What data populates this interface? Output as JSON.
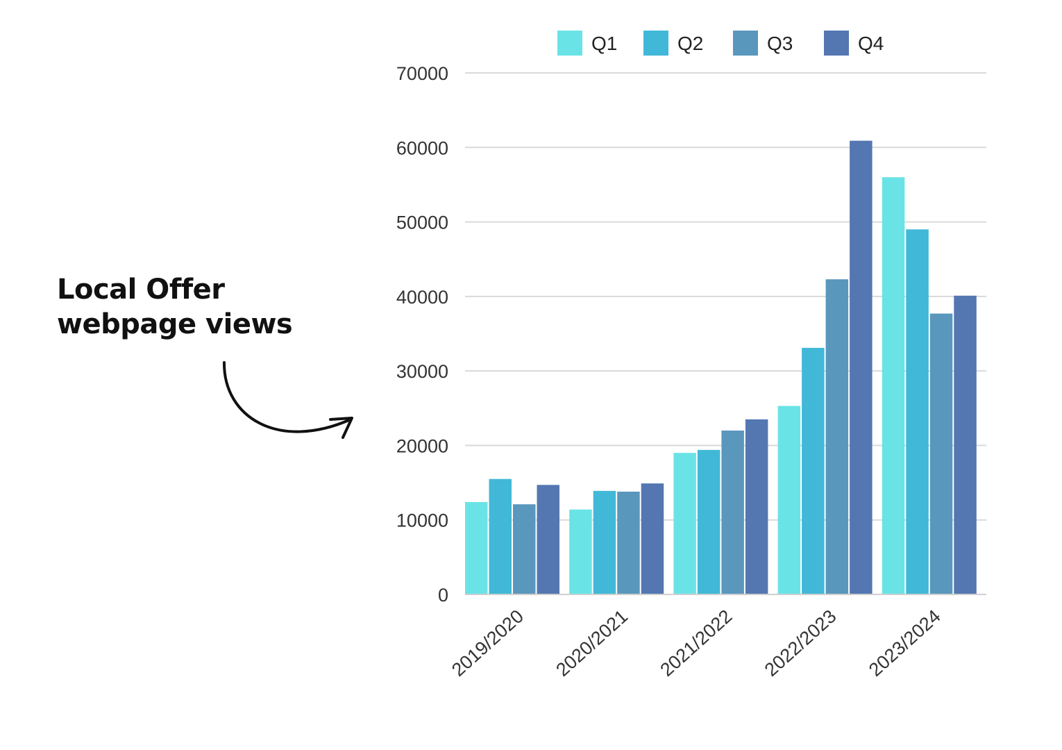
{
  "annotation": {
    "line1": "Local Offer",
    "line2": "webpage views"
  },
  "chart_data": {
    "type": "bar",
    "title": "",
    "xlabel": "",
    "ylabel": "",
    "categories": [
      "2019/2020",
      "2020/2021",
      "2021/2022",
      "2022/2023",
      "2023/2024"
    ],
    "series": [
      {
        "name": "Q1",
        "color": "#6ae3e6",
        "values": [
          12400,
          11400,
          19000,
          25300,
          56000
        ]
      },
      {
        "name": "Q2",
        "color": "#41b8d8",
        "values": [
          15500,
          13900,
          19400,
          33100,
          49000
        ]
      },
      {
        "name": "Q3",
        "color": "#5a97bd",
        "values": [
          12100,
          13800,
          22000,
          42300,
          37700
        ]
      },
      {
        "name": "Q4",
        "color": "#5477b2",
        "values": [
          14700,
          14900,
          23500,
          60900,
          40100
        ]
      }
    ],
    "ylim": [
      0,
      70000
    ],
    "yticks": [
      0,
      10000,
      20000,
      30000,
      40000,
      50000,
      60000,
      70000
    ],
    "grid": true,
    "legend_position": "top"
  }
}
